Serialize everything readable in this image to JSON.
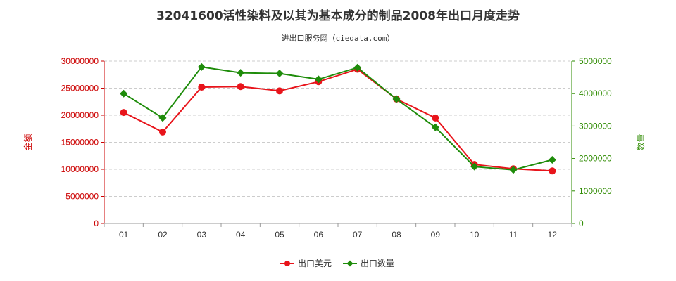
{
  "chart_data": {
    "type": "line",
    "title": "32041600活性染料及以其为基本成分的制品2008年出口月度走势",
    "subtitle": "进出口服务网（ciedata.com）",
    "categories": [
      "01",
      "02",
      "03",
      "04",
      "05",
      "06",
      "07",
      "08",
      "09",
      "10",
      "11",
      "12"
    ],
    "y_left": {
      "label": "金额",
      "range": [
        0,
        30000000
      ],
      "ticks": [
        "0",
        "5000000",
        "10000000",
        "15000000",
        "20000000",
        "25000000",
        "30000000"
      ],
      "color": "#e8141b"
    },
    "y_right": {
      "label": "数量",
      "range": [
        0,
        5000000
      ],
      "ticks": [
        "0",
        "1000000",
        "2000000",
        "3000000",
        "4000000",
        "5000000"
      ],
      "color": "#1e8c0a"
    },
    "series": [
      {
        "name": "出口美元",
        "axis": "left",
        "color": "#e8141b",
        "marker": "circle",
        "values": [
          20500000,
          16900000,
          25200000,
          25300000,
          24500000,
          26200000,
          28500000,
          23000000,
          19500000,
          10900000,
          10100000,
          9700000
        ]
      },
      {
        "name": "出口数量",
        "axis": "right",
        "color": "#1e8c0a",
        "marker": "diamond",
        "values": [
          4000000,
          3250000,
          4820000,
          4640000,
          4620000,
          4440000,
          4800000,
          3830000,
          2960000,
          1750000,
          1650000,
          1960000
        ]
      }
    ],
    "grid": "horizontal-dashed",
    "legend_position": "bottom-center"
  }
}
